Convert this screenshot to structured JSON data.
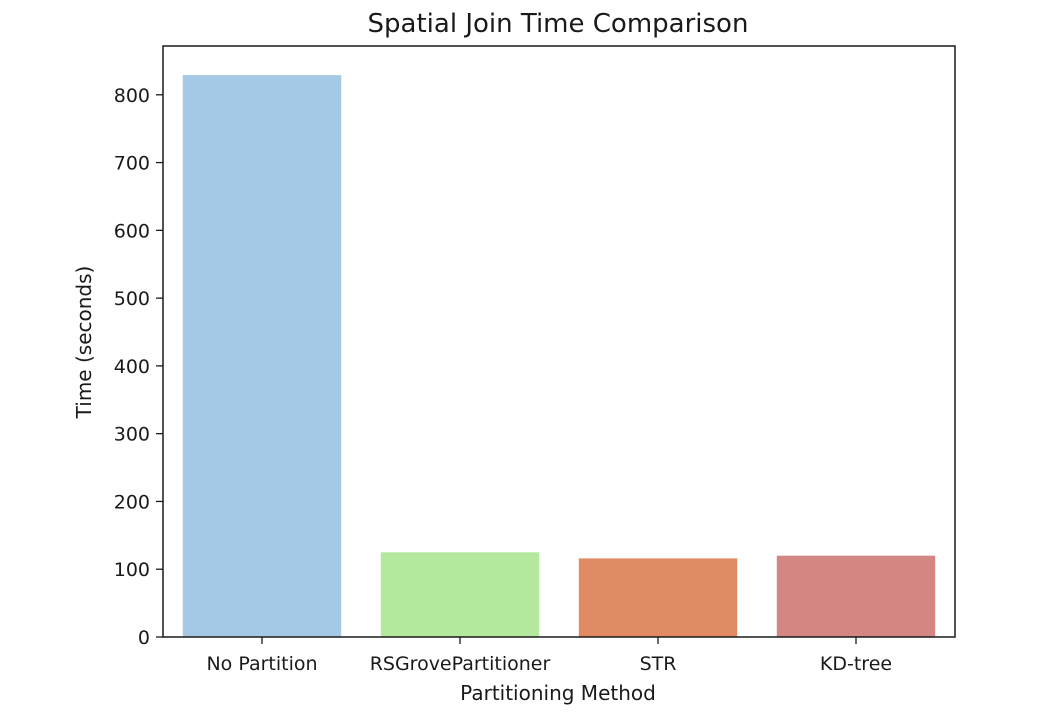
{
  "chart_data": {
    "type": "bar",
    "title": "Spatial Join Time Comparison",
    "xlabel": "Partitioning Method",
    "ylabel": "Time (seconds)",
    "categories": [
      "No Partition",
      "RSGrovePartitioner",
      "STR",
      "KD-tree"
    ],
    "values": [
      829,
      125,
      116,
      120
    ],
    "colors": [
      "#a3c9e5",
      "#b3e89d",
      "#e08b63",
      "#d48782"
    ],
    "ylim": [
      0,
      872
    ],
    "yticks": [
      0,
      100,
      200,
      300,
      400,
      500,
      600,
      700,
      800
    ],
    "grid": false,
    "legend": "none"
  }
}
